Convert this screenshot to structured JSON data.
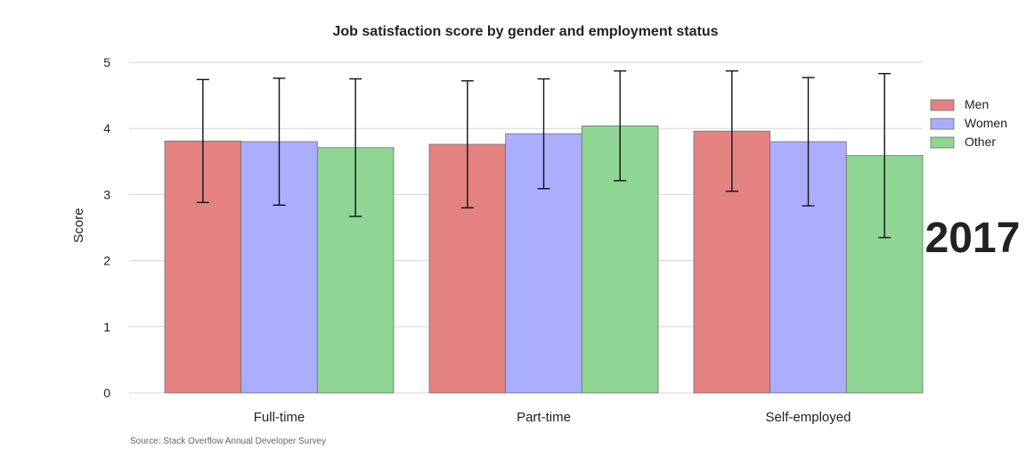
{
  "chart_data": {
    "type": "bar",
    "title": "Job satisfaction score by gender and employment status",
    "xlabel": "",
    "ylabel": "Score",
    "ylim": [
      0,
      5
    ],
    "yticks": [
      "0",
      "1",
      "2",
      "3",
      "4",
      "5"
    ],
    "grid": true,
    "legend_position": "right",
    "categories": [
      "Full-time",
      "Part-time",
      "Self-employed"
    ],
    "series": [
      {
        "name": "Men",
        "color": "#e48282",
        "values": [
          3.81,
          3.76,
          3.96
        ],
        "error": [
          0.93,
          0.96,
          0.91
        ]
      },
      {
        "name": "Women",
        "color": "#abaeff",
        "values": [
          3.8,
          3.92,
          3.8
        ],
        "error": [
          0.96,
          0.83,
          0.97
        ]
      },
      {
        "name": "Other",
        "color": "#8fd594",
        "values": [
          3.71,
          4.04,
          3.59
        ],
        "error": [
          1.04,
          0.83,
          1.24
        ]
      }
    ],
    "annotations": {
      "year": "2017",
      "source": "Source: Stack Overflow Annual Developer Survey"
    }
  }
}
